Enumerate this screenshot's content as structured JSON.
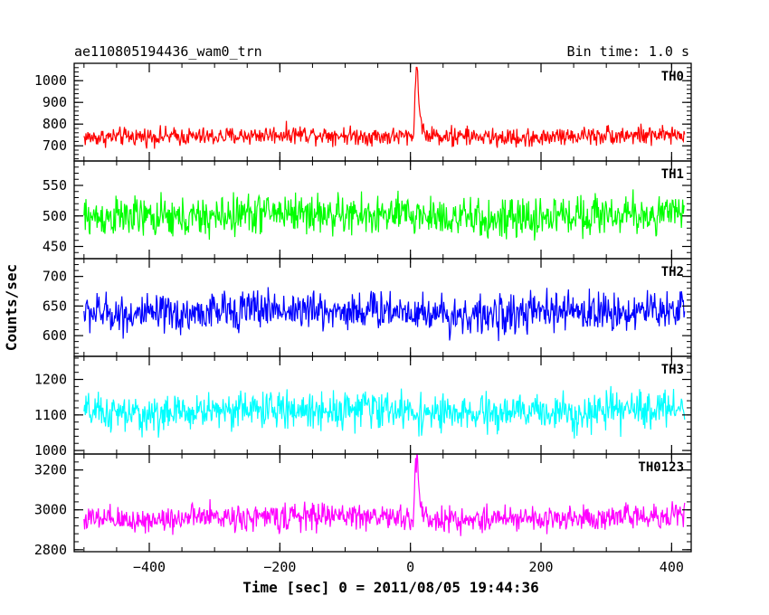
{
  "chart_data": {
    "type": "line",
    "title": "ae110805194436_wam0_trn",
    "subtitle": "Bin time: 1.0 s",
    "xlabel": "Time [sec] 0 = 2011/08/05 19:44:36",
    "ylabel": "Counts/sec",
    "xlim": [
      -515,
      430
    ],
    "x_ticks": [
      -400,
      -200,
      0,
      200,
      400
    ],
    "x_tick_labels": [
      "−400",
      "−200",
      "0",
      "200",
      "400"
    ],
    "x_range_data": [
      -500,
      420
    ],
    "bin_time_s": 1.0,
    "panels": [
      {
        "label": "TH0",
        "color": "#ff0000",
        "ylim": [
          630,
          1080
        ],
        "y_ticks": [
          700,
          800,
          900,
          1000
        ],
        "y_tick_labels": [
          "700",
          "800",
          "900",
          "1000"
        ],
        "mean": 745,
        "spread": 45,
        "peak": {
          "t": 10,
          "value": 1080
        }
      },
      {
        "label": "TH1",
        "color": "#00ff00",
        "ylim": [
          430,
          590
        ],
        "y_ticks": [
          450,
          500,
          550
        ],
        "y_tick_labels": [
          "450",
          "500",
          "550"
        ],
        "mean": 500,
        "spread": 35,
        "peak": null
      },
      {
        "label": "TH2",
        "color": "#0000ff",
        "ylim": [
          565,
          730
        ],
        "y_ticks": [
          600,
          650,
          700
        ],
        "y_tick_labels": [
          "600",
          "650",
          "700"
        ],
        "mean": 640,
        "spread": 35,
        "peak": null
      },
      {
        "label": "TH3",
        "color": "#00ffff",
        "ylim": [
          990,
          1265
        ],
        "y_ticks": [
          1000,
          1100,
          1200
        ],
        "y_tick_labels": [
          "1000",
          "1100",
          "1200"
        ],
        "mean": 1110,
        "spread": 55,
        "peak": null
      },
      {
        "label": "TH0123",
        "color": "#ff00ff",
        "ylim": [
          2790,
          3280
        ],
        "y_ticks": [
          2800,
          3000,
          3200
        ],
        "y_tick_labels": [
          "2800",
          "3000",
          "3200"
        ],
        "mean": 2960,
        "spread": 70,
        "peak": {
          "t": 10,
          "value": 3280
        }
      }
    ]
  }
}
